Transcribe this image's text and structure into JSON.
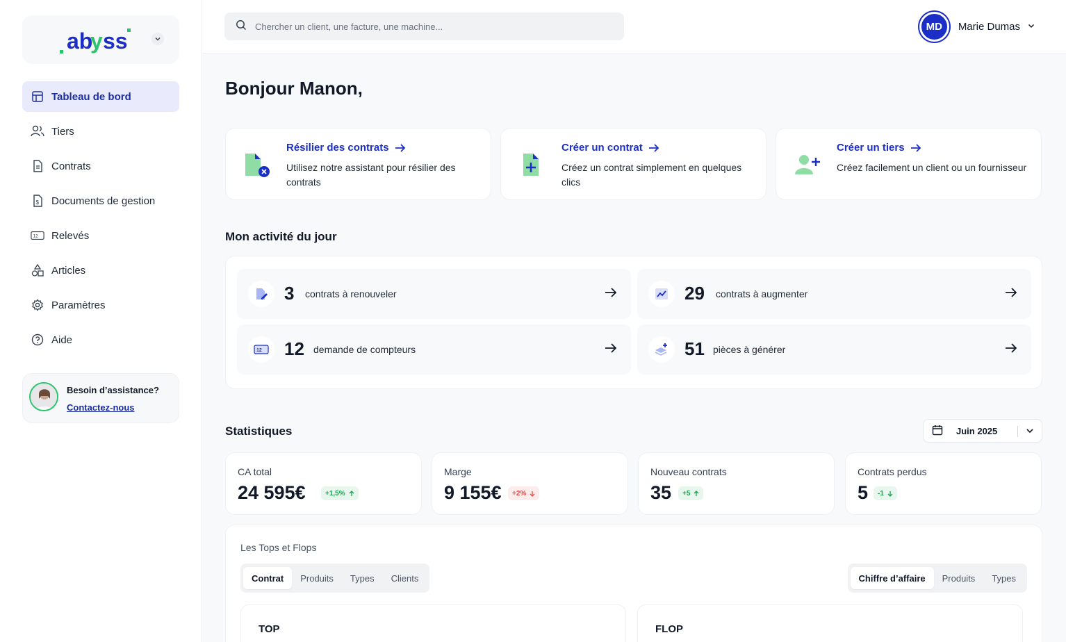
{
  "brand": {
    "name": "abyss"
  },
  "sidebar": {
    "items": [
      {
        "label": "Tableau de bord",
        "icon": "dashboard-icon",
        "active": true
      },
      {
        "label": "Tiers",
        "icon": "users-icon"
      },
      {
        "label": "Contrats",
        "icon": "document-icon"
      },
      {
        "label": "Documents de gestion",
        "icon": "invoice-icon"
      },
      {
        "label": "Relevés",
        "icon": "meter-icon"
      },
      {
        "label": "Articles",
        "icon": "shapes-icon"
      },
      {
        "label": "Paramètres",
        "icon": "gear-icon"
      },
      {
        "label": "Aide",
        "icon": "help-icon"
      }
    ],
    "meter_glyph": "12",
    "assist": {
      "title": "Besoin d’assistance?",
      "link": "Contactez-nous"
    }
  },
  "search": {
    "placeholder": "Chercher un client, une facture, une machine..."
  },
  "user": {
    "initials": "MD",
    "name": "Marie Dumas"
  },
  "greeting": "Bonjour Manon,",
  "quick_actions": [
    {
      "title": "Résilier des contrats",
      "desc": "Utilisez notre assistant pour résilier des contrats",
      "icon": "document-cancel-icon"
    },
    {
      "title": "Créer un contrat",
      "desc": "Créez un contrat simplement en quelques clics",
      "icon": "document-add-icon"
    },
    {
      "title": "Créer un tiers",
      "desc": "Créez facilement un client ou un fournisseur",
      "icon": "user-add-icon"
    }
  ],
  "activity": {
    "title": "Mon activité du jour",
    "items": [
      {
        "count": "3",
        "label": "contrats à renouveler",
        "icon": "document-edit-icon"
      },
      {
        "count": "29",
        "label": "contrats à augmenter",
        "icon": "trend-up-icon"
      },
      {
        "count": "12",
        "label": "demande de compteurs",
        "icon": "meter-icon"
      },
      {
        "count": "51",
        "label": "pièces à générer",
        "icon": "layers-add-icon"
      }
    ]
  },
  "stats": {
    "title": "Statistiques",
    "period": "Juin 2025",
    "cards": [
      {
        "label": "CA total",
        "value": "24 595€",
        "delta": "+1,5%",
        "trend": "up",
        "delta_color": "#16a34a"
      },
      {
        "label": "Marge",
        "value": "9 155€",
        "delta": "+2%",
        "trend": "down",
        "delta_color": "#ef4444"
      },
      {
        "label": "Nouveau contrats",
        "value": "35",
        "delta": "+5",
        "trend": "up",
        "delta_color": "#16a34a"
      },
      {
        "label": "Contrats perdus",
        "value": "5",
        "delta": "-1",
        "trend": "down",
        "delta_color": "#16a34a"
      }
    ]
  },
  "tops_flops": {
    "title": "Les Tops et Flops",
    "left_tabs": [
      "Contrat",
      "Produits",
      "Types",
      "Clients"
    ],
    "right_tabs": [
      "Chiffre d’affaire",
      "Produits",
      "Types"
    ],
    "top_label": "TOP",
    "flop_label": "FLOP"
  },
  "colors": {
    "accent": "#1b2fc7",
    "accent_light": "#e9ebfd",
    "green": "#2cc46b",
    "icon_green": "#8fdca5"
  }
}
